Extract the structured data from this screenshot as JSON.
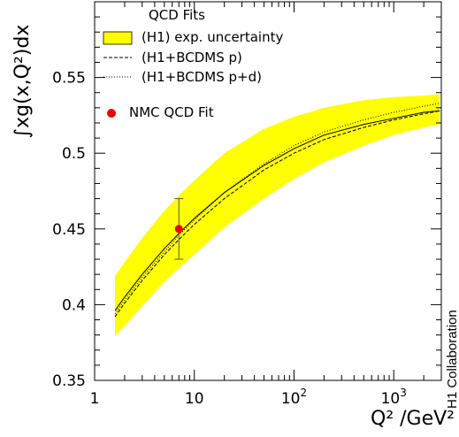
{
  "chart_data": {
    "type": "line",
    "xscale": "log",
    "xlim": [
      1,
      3000
    ],
    "ylim": [
      0.35,
      0.6
    ],
    "xlabel": "Q² /GeV²",
    "ylabel": "∫xg(x,Q²)dx",
    "x_ticks": [
      {
        "value": 1,
        "label": "1"
      },
      {
        "value": 10,
        "label": "10"
      },
      {
        "value": 100,
        "label": "10",
        "sup": "2"
      },
      {
        "value": 1000,
        "label": "10",
        "sup": "3"
      }
    ],
    "y_ticks": [
      {
        "value": 0.35,
        "label": "0.35"
      },
      {
        "value": 0.4,
        "label": "0.4"
      },
      {
        "value": 0.45,
        "label": "0.45"
      },
      {
        "value": 0.5,
        "label": "0.5"
      },
      {
        "value": 0.55,
        "label": "0.55"
      }
    ],
    "legend_title": "QCD Fits",
    "legend_placement": "top-left",
    "side_label": "H1 Collaboration",
    "colors": {
      "band": "#ffff00",
      "point": "#ee0000",
      "line": "#000000"
    },
    "band": {
      "name": "(H1) exp. uncertainty",
      "x": [
        1.6,
        2,
        3,
        5,
        7,
        10,
        20,
        50,
        100,
        200,
        500,
        1000,
        2000,
        2900
      ],
      "lower": [
        0.379,
        0.386,
        0.399,
        0.415,
        0.424,
        0.433,
        0.451,
        0.47,
        0.483,
        0.494,
        0.505,
        0.512,
        0.517,
        0.519
      ],
      "upper": [
        0.419,
        0.428,
        0.444,
        0.462,
        0.472,
        0.482,
        0.5,
        0.516,
        0.524,
        0.53,
        0.535,
        0.537,
        0.538,
        0.539
      ]
    },
    "series": [
      {
        "name": "(H1) exp. uncertainty",
        "style": "solid",
        "x": [
          1.6,
          2,
          3,
          5,
          7,
          10,
          20,
          50,
          100,
          200,
          500,
          1000,
          2000,
          2900
        ],
        "values": [
          0.396,
          0.405,
          0.42,
          0.437,
          0.447,
          0.457,
          0.474,
          0.492,
          0.503,
          0.512,
          0.519,
          0.523,
          0.527,
          0.528
        ]
      },
      {
        "name": "(H1+BCDMS p)",
        "style": "dashed",
        "x": [
          1.6,
          2,
          3,
          5,
          7,
          10,
          20,
          50,
          100,
          200,
          500,
          1000,
          2000,
          2900
        ],
        "values": [
          0.392,
          0.401,
          0.416,
          0.433,
          0.443,
          0.453,
          0.47,
          0.489,
          0.5,
          0.509,
          0.517,
          0.522,
          0.526,
          0.528
        ]
      },
      {
        "name": "(H1+BCDMS p+d)",
        "style": "dotted",
        "x": [
          1.6,
          2,
          3,
          5,
          7,
          10,
          20,
          50,
          100,
          200,
          500,
          1000,
          2000,
          2900
        ],
        "values": [
          0.394,
          0.403,
          0.418,
          0.435,
          0.446,
          0.456,
          0.474,
          0.493,
          0.505,
          0.514,
          0.522,
          0.527,
          0.531,
          0.533
        ]
      }
    ],
    "points": [
      {
        "name": "NMC QCD Fit",
        "x": 7,
        "y": 0.45,
        "err_low": 0.43,
        "err_high": 0.47
      }
    ],
    "legend": [
      {
        "label": "(H1) exp. uncertainty",
        "kind": "band"
      },
      {
        "label": "(H1+BCDMS p)",
        "kind": "dashed"
      },
      {
        "label": "(H1+BCDMS p+d)",
        "kind": "dotted"
      },
      {
        "label": "NMC QCD Fit",
        "kind": "point"
      }
    ]
  }
}
